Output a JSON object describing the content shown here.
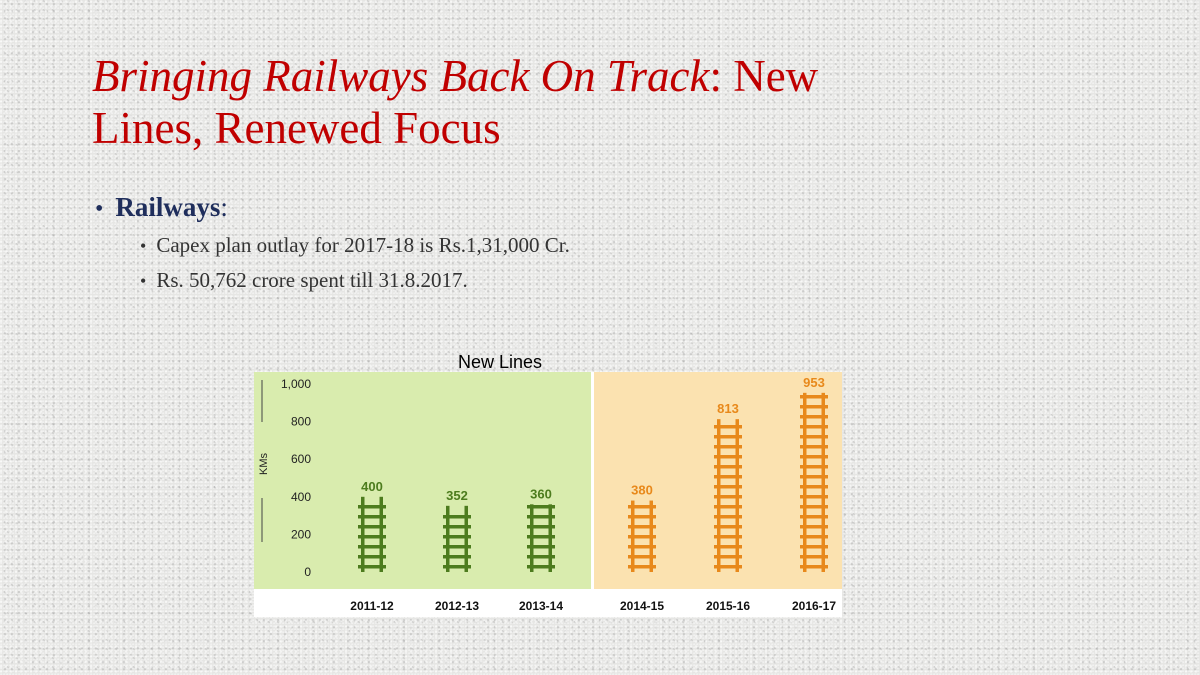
{
  "slide": {
    "title_italic": "Bringing Railways Back On Track",
    "title_rest_line1": ": New",
    "title_line2": "Lines, Renewed Focus",
    "bullet_marker": "•",
    "bullet_main_label": "Railways",
    "bullet_main_suffix": ":",
    "sub_bullets": [
      "Capex plan outlay for 2017-18 is Rs.1,31,000 Cr.",
      "Rs. 50,762 crore spent till 31.8.2017."
    ]
  },
  "chart_data": {
    "type": "bar",
    "title": "New Lines",
    "ylabel": "KMs",
    "xlabel": "",
    "categories": [
      "2011-12",
      "2012-13",
      "2013-14",
      "2014-15",
      "2015-16",
      "2016-17"
    ],
    "values": [
      400,
      352,
      360,
      380,
      813,
      953
    ],
    "data_labels": [
      "400",
      "352",
      "360",
      "380",
      "813",
      "953"
    ],
    "yticks": [
      "0",
      "200",
      "400",
      "600",
      "800",
      "1,000"
    ],
    "ylim": [
      0,
      1000
    ],
    "grid": false,
    "legend": "none",
    "colors": {
      "period_1_background": "#d9ecae",
      "period_1_bars": "#4d7c1e",
      "period_2_background": "#fbe2b0",
      "period_2_bars": "#e8891b",
      "divider": "#ffffff"
    }
  }
}
